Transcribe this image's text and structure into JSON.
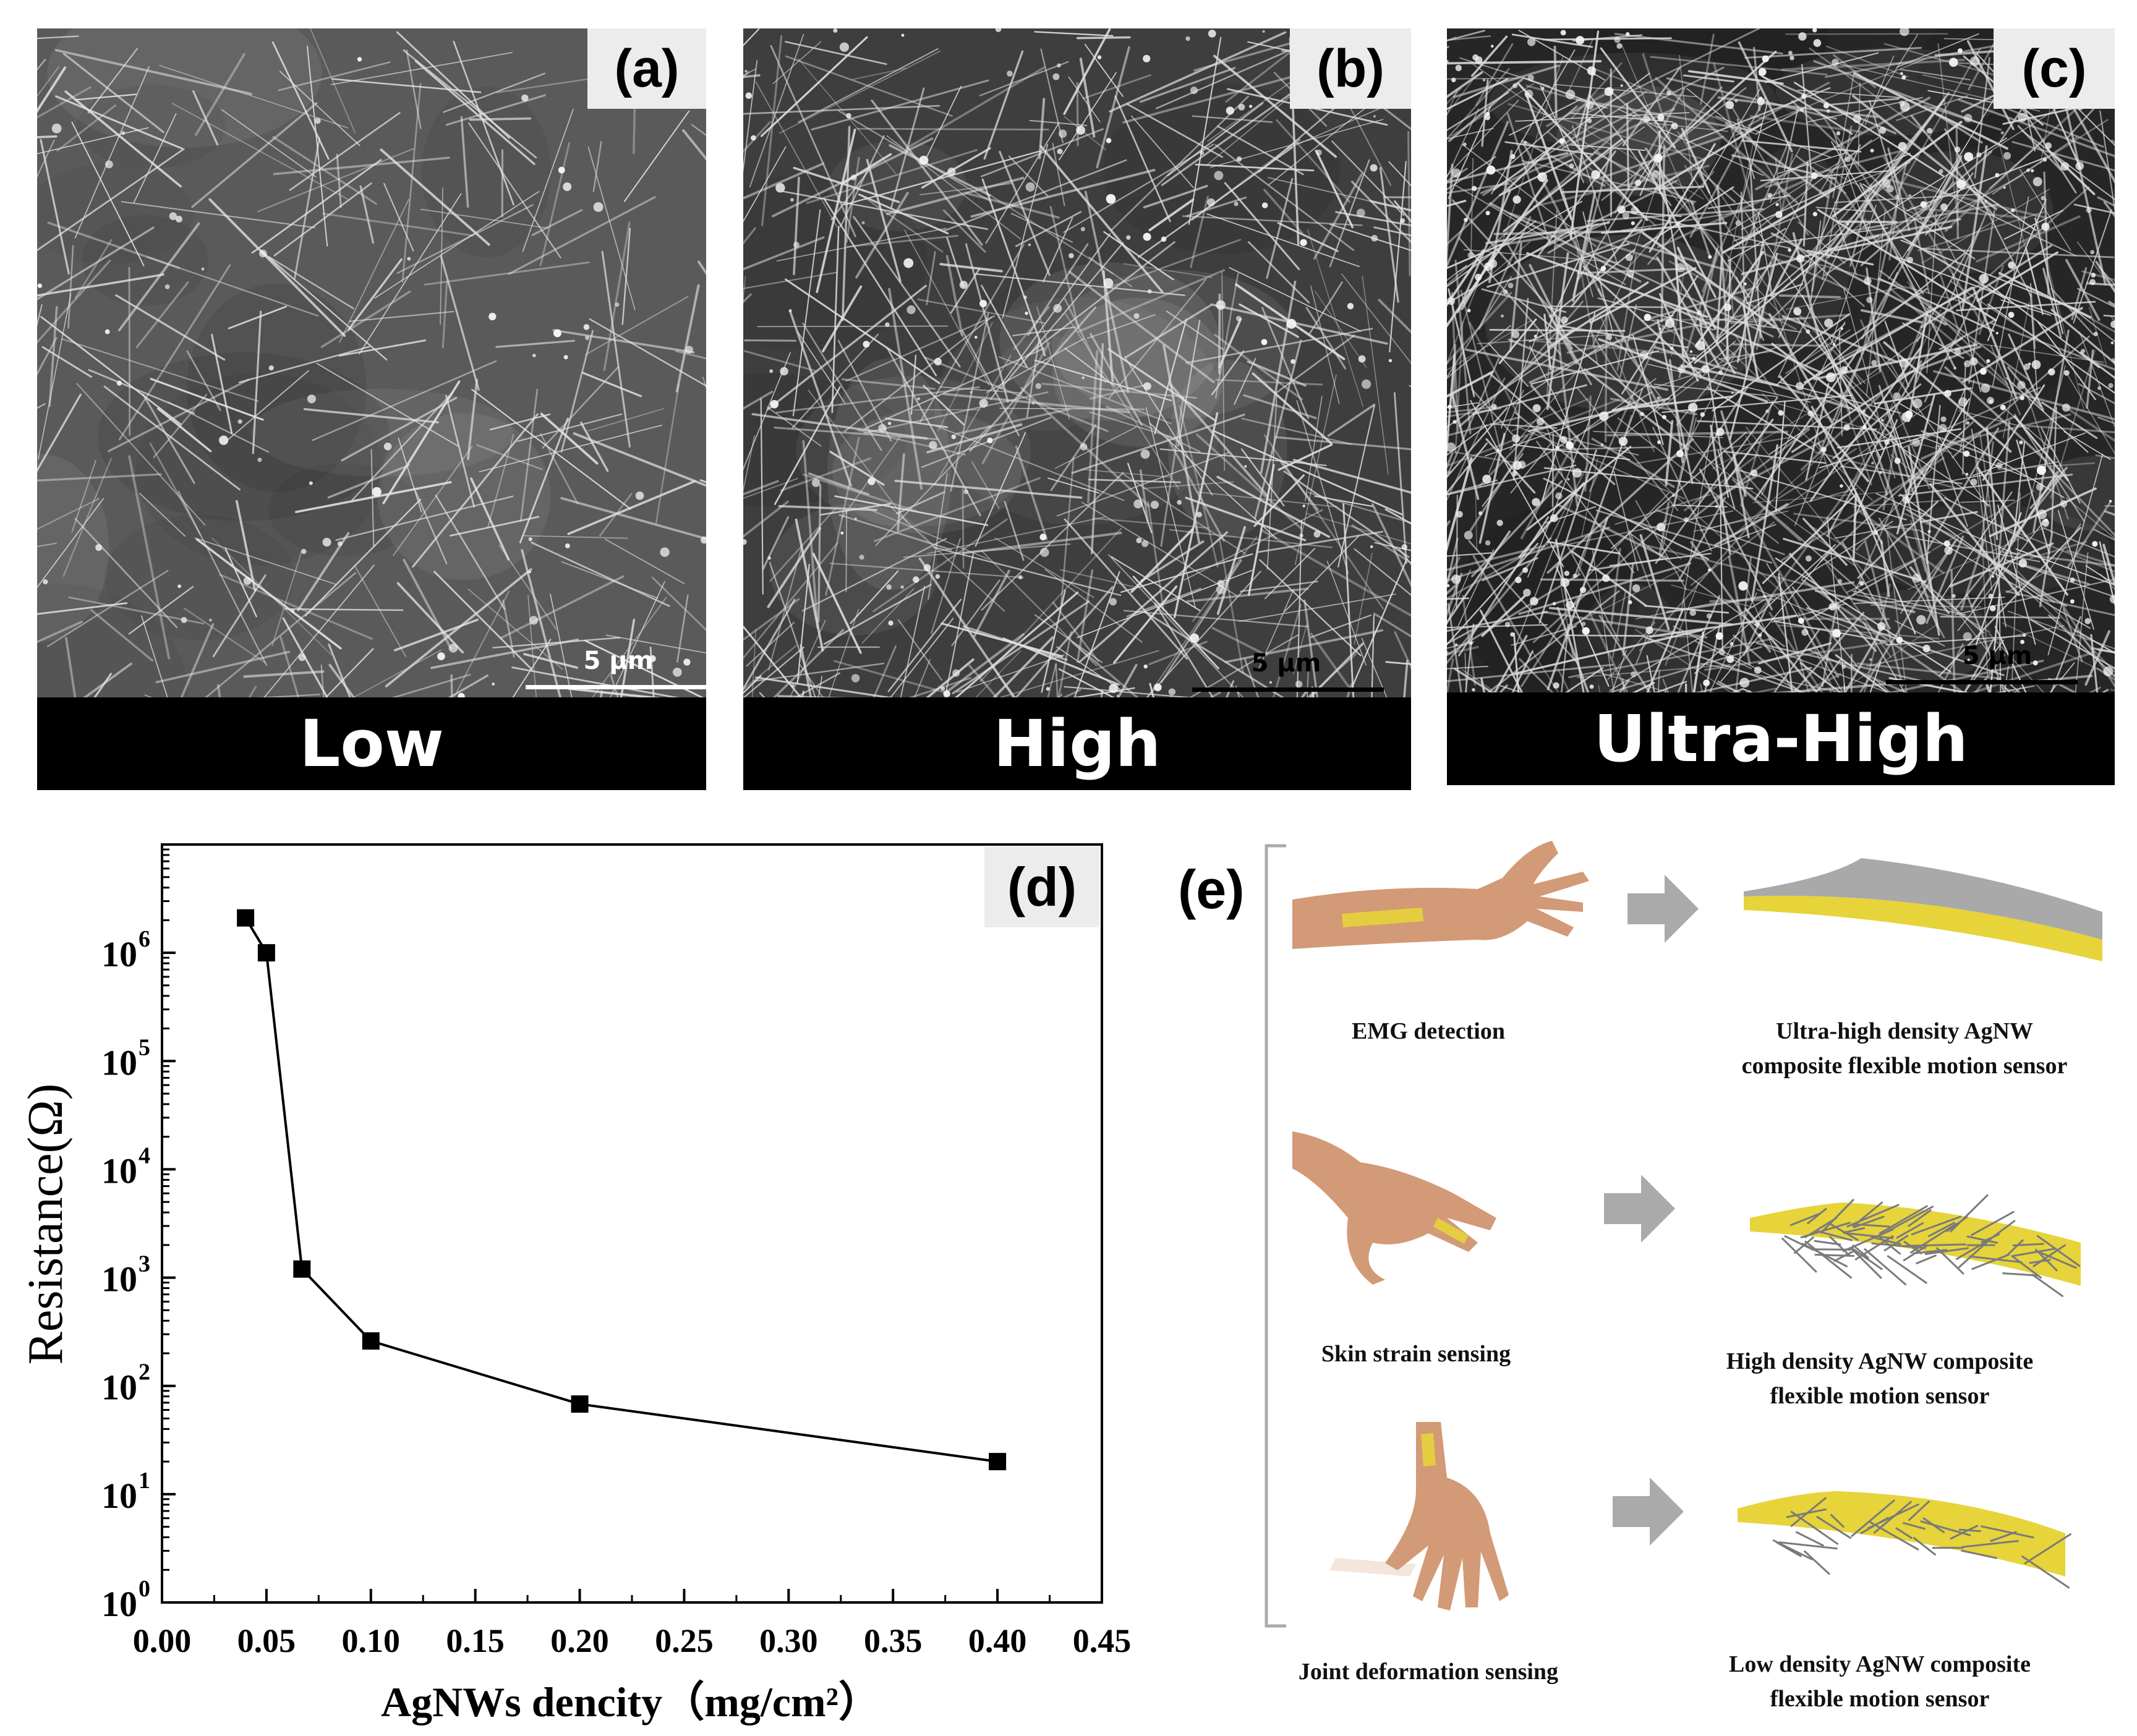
{
  "sem_panels": [
    {
      "tag": "(a)",
      "caption": "Low",
      "scale": "5 μm",
      "background": "#5a5a5a",
      "wire_color": "#e6e6e6"
    },
    {
      "tag": "(b)",
      "caption": "High",
      "scale": "5 μm",
      "background": "#3e3e3e",
      "wire_color": "#e2e2e2"
    },
    {
      "tag": "(c)",
      "caption": "Ultra-High",
      "scale": "5 μm",
      "background": "#262626",
      "wire_color": "#dcdcdc"
    }
  ],
  "chart_data": {
    "type": "line",
    "panel_tag": "(d)",
    "xlabel": "AgNWs dencity（mg/cm²）",
    "ylabel": "Resistance(Ω)",
    "x_scale": "linear",
    "y_scale": "log",
    "xlim": [
      0.0,
      0.45
    ],
    "ylim": [
      1,
      10000000
    ],
    "x_ticks": [
      "0.00",
      "0.05",
      "0.10",
      "0.15",
      "0.20",
      "0.25",
      "0.30",
      "0.35",
      "0.40",
      "0.45"
    ],
    "y_ticks": [
      {
        "base": "10",
        "exp": "0"
      },
      {
        "base": "10",
        "exp": "1"
      },
      {
        "base": "10",
        "exp": "2"
      },
      {
        "base": "10",
        "exp": "3"
      },
      {
        "base": "10",
        "exp": "4"
      },
      {
        "base": "10",
        "exp": "5"
      },
      {
        "base": "10",
        "exp": "6"
      }
    ],
    "grid": false,
    "marker": "square",
    "series": [
      {
        "x": [
          0.04,
          0.05,
          0.067,
          0.1,
          0.2,
          0.4
        ],
        "y": [
          2100000,
          1000000,
          1200,
          260,
          68,
          20
        ]
      }
    ]
  },
  "panel_e": {
    "tag": "(e)",
    "rows": [
      {
        "application": "EMG detection",
        "sensor_line1": "Ultra-high density AgNW",
        "sensor_line2": "composite flexible motion sensor",
        "sensor_type": "ultra-high"
      },
      {
        "application": "Skin strain sensing",
        "sensor_line1": "High density AgNW composite",
        "sensor_line2": "flexible motion sensor",
        "sensor_type": "high"
      },
      {
        "application": "Joint deformation sensing",
        "sensor_line1": "Low density AgNW composite",
        "sensor_line2": "flexible motion sensor",
        "sensor_type": "low"
      }
    ],
    "colors": {
      "skin": "#d29a76",
      "sensor_yellow": "#e6d43a",
      "sensor_gray": "#a9a9a9",
      "arrow": "#aaaaaa"
    }
  }
}
